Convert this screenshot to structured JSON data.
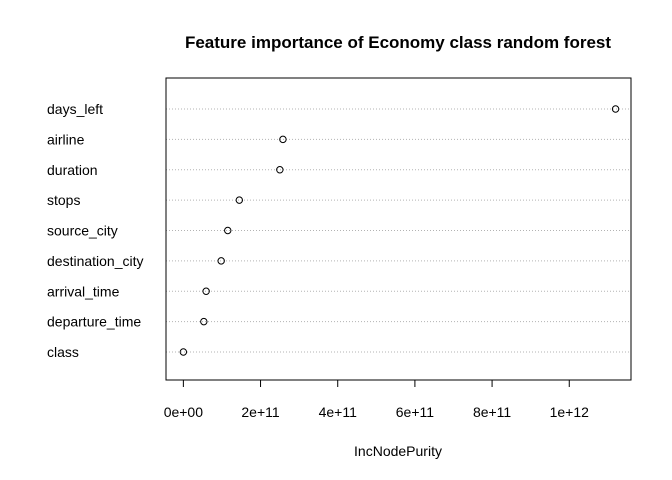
{
  "chart_data": {
    "type": "dotchart",
    "title": "Feature importance of Economy class random forest",
    "xlabel": "IncNodePurity",
    "ylabel": "",
    "xlim": [
      -45000000000.0,
      1160000000000.0
    ],
    "xticks": [
      0,
      200000000000.0,
      400000000000.0,
      600000000000.0,
      800000000000.0,
      1000000000000.0
    ],
    "xtick_labels": [
      "0e+00",
      "2e+11",
      "4e+11",
      "6e+11",
      "8e+11",
      "1e+12"
    ],
    "grid": "dotted horizontal lines",
    "categories": [
      "days_left",
      "airline",
      "duration",
      "stops",
      "source_city",
      "destination_city",
      "arrival_time",
      "departure_time",
      "class"
    ],
    "values": [
      1120000000000.0,
      258000000000.0,
      250000000000.0,
      145000000000.0,
      115000000000.0,
      98000000000.0,
      59000000000.0,
      53000000000.0,
      0
    ]
  }
}
